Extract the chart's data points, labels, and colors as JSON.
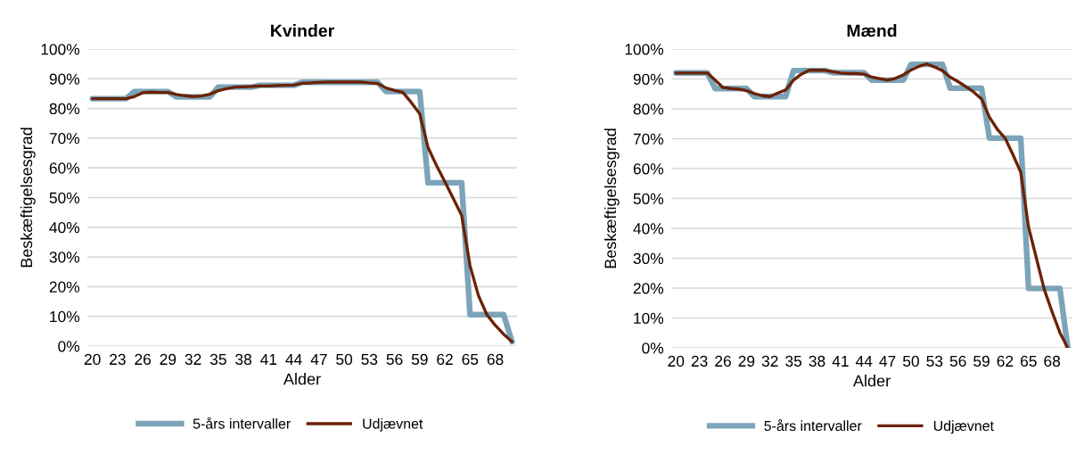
{
  "chart_data": [
    {
      "type": "line",
      "title": "Kvinder",
      "xlabel": "Alder",
      "ylabel": "Beskæftigelsesgrad",
      "categories": [
        "20",
        null,
        null,
        "23",
        null,
        null,
        "26",
        null,
        null,
        "29",
        null,
        null,
        "32",
        null,
        null,
        "35",
        null,
        null,
        "38",
        null,
        null,
        "41",
        null,
        null,
        "44",
        null,
        null,
        "47",
        null,
        null,
        "50",
        null,
        null,
        "53",
        null,
        null,
        "56",
        null,
        null,
        "59",
        null,
        null,
        "62",
        null,
        null,
        "65",
        null,
        null,
        "68",
        null,
        null
      ],
      "series": [
        {
          "name": "5-års intervaller",
          "color": "#7ba4b9",
          "values": [
            83.3,
            83.3,
            83.3,
            83.3,
            83.3,
            85.7,
            85.7,
            85.7,
            85.7,
            85.7,
            83.9,
            83.9,
            83.9,
            83.9,
            83.9,
            87.2,
            87.2,
            87.2,
            87.2,
            87.2,
            87.8,
            87.8,
            87.8,
            87.8,
            87.8,
            88.8,
            88.8,
            88.8,
            88.8,
            88.8,
            88.8,
            88.8,
            88.8,
            88.8,
            88.8,
            85.7,
            85.7,
            85.7,
            85.7,
            85.7,
            55,
            55,
            55,
            55,
            55,
            10.6,
            10.6,
            10.6,
            10.6,
            10.6,
            1.5
          ]
        },
        {
          "name": "Udjævnet",
          "color": "#6b2205",
          "values": [
            83.3,
            83.3,
            83.3,
            83.3,
            83.3,
            84,
            85.3,
            85.5,
            85.4,
            85.4,
            84.7,
            84.3,
            84,
            84.2,
            84.8,
            86,
            86.7,
            87.2,
            87.3,
            87.4,
            87.6,
            87.6,
            87.7,
            87.8,
            87.9,
            88.5,
            88.6,
            88.8,
            88.9,
            88.9,
            88.9,
            88.9,
            88.9,
            88.6,
            88.4,
            86.9,
            86.1,
            85.4,
            82,
            78.2,
            66.8,
            60.8,
            55.3,
            49.7,
            44,
            27,
            17,
            10.6,
            7,
            4,
            1.5
          ]
        }
      ],
      "ylim": [
        0,
        100
      ],
      "yticks": [
        {
          "value": 0,
          "label": "0%"
        },
        {
          "value": 10,
          "label": "10%"
        },
        {
          "value": 20,
          "label": "20%"
        },
        {
          "value": 30,
          "label": "30%"
        },
        {
          "value": 40,
          "label": "40%"
        },
        {
          "value": 50,
          "label": "50%"
        },
        {
          "value": 60,
          "label": "60%"
        },
        {
          "value": 70,
          "label": "70%"
        },
        {
          "value": 80,
          "label": "80%"
        },
        {
          "value": 90,
          "label": "90%"
        },
        {
          "value": 100,
          "label": "100%"
        }
      ],
      "grid": "y",
      "legend": "bottom",
      "marker": "none",
      "line_style": "solid"
    },
    {
      "type": "line",
      "title": "Mænd",
      "xlabel": "Alder",
      "ylabel": "Beskæftigelsesgrad",
      "categories": [
        "20",
        null,
        null,
        "23",
        null,
        null,
        "26",
        null,
        null,
        "29",
        null,
        null,
        "32",
        null,
        null,
        "35",
        null,
        null,
        "38",
        null,
        null,
        "41",
        null,
        null,
        "44",
        null,
        null,
        "47",
        null,
        null,
        "50",
        null,
        null,
        "53",
        null,
        null,
        "56",
        null,
        null,
        "59",
        null,
        null,
        "62",
        null,
        null,
        "65",
        null,
        null,
        "68",
        null,
        null
      ],
      "series": [
        {
          "name": "5-års intervaller",
          "color": "#7ba4b9",
          "values": [
            92,
            92,
            92,
            92,
            92,
            86.8,
            86.8,
            86.8,
            86.8,
            86.8,
            84.1,
            84.1,
            84.1,
            84.1,
            84.1,
            92.8,
            92.8,
            92.8,
            92.8,
            92.8,
            92.1,
            92.1,
            92.1,
            92.1,
            92.1,
            89.6,
            89.6,
            89.6,
            89.6,
            89.6,
            94.9,
            94.9,
            94.9,
            94.9,
            94.9,
            86.9,
            86.9,
            86.9,
            86.9,
            86.9,
            70.2,
            70.2,
            70.2,
            70.2,
            70.2,
            19.9,
            19.9,
            19.9,
            19.9,
            19.9,
            0
          ]
        },
        {
          "name": "Udjævnet",
          "color": "#6b2205",
          "values": [
            92,
            92,
            92,
            92,
            92,
            89.6,
            87.1,
            86.8,
            86.6,
            86.1,
            85.1,
            84.4,
            84.1,
            85.3,
            86.3,
            89.6,
            91.6,
            92.9,
            92.9,
            92.9,
            92.4,
            92,
            91.8,
            91.8,
            91.6,
            90.6,
            90.1,
            89.6,
            90.2,
            91.3,
            93,
            94.2,
            95,
            94,
            92.8,
            90.6,
            89.1,
            87.4,
            85.6,
            83.3,
            77.2,
            73.2,
            70.2,
            64.7,
            58.8,
            40.4,
            30,
            19.6,
            12.1,
            5.1,
            0
          ]
        }
      ],
      "ylim": [
        0,
        100
      ],
      "yticks": [
        {
          "value": 0,
          "label": "0%"
        },
        {
          "value": 10,
          "label": "10%"
        },
        {
          "value": 20,
          "label": "20%"
        },
        {
          "value": 30,
          "label": "30%"
        },
        {
          "value": 40,
          "label": "40%"
        },
        {
          "value": 50,
          "label": "50%"
        },
        {
          "value": 60,
          "label": "60%"
        },
        {
          "value": 70,
          "label": "70%"
        },
        {
          "value": 80,
          "label": "80%"
        },
        {
          "value": 90,
          "label": "90%"
        },
        {
          "value": 100,
          "label": "100%"
        }
      ],
      "grid": "y",
      "legend": "bottom",
      "marker": "none",
      "line_style": "solid"
    }
  ]
}
